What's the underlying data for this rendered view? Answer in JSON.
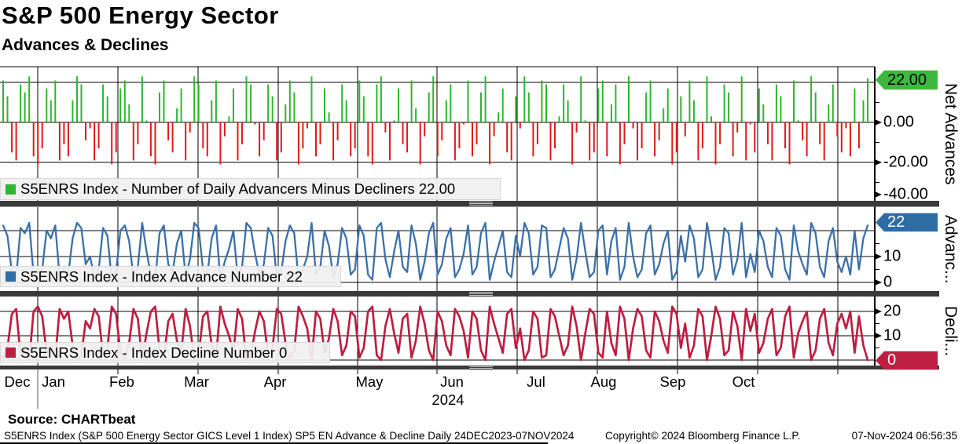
{
  "title": "S&P 500 Energy Sector",
  "subtitle": "Advances & Declines",
  "colors": {
    "advance_bar": "#2fb52f",
    "decline_bar": "#e01a1a",
    "advance_line": "#3a70a8",
    "decline_line": "#bd1e41",
    "tag_net_bg": "#3cb83c",
    "tag_adv_bg": "#2e6da4",
    "tag_dec_bg": "#bd1e41",
    "gridline": "#000000",
    "separator": "#3a3a3a",
    "legend_bg": "#f0f0f0"
  },
  "panels": [
    {
      "axis_title": "Net Advances",
      "tag": "22.00",
      "ticks": [
        "0.00",
        "-20.00",
        "-40.00"
      ],
      "legend": {
        "label": "S5ENRS Index - Number of Daily Advancers Minus Decliners 22.00"
      }
    },
    {
      "axis_title": "Advanc...",
      "tag": "22",
      "ticks": [
        "10",
        "0"
      ],
      "legend": {
        "label": "S5ENRS Index - Index Advance Number 22"
      }
    },
    {
      "axis_title": "Decli...",
      "tag": "0",
      "ticks": [
        "20",
        "10"
      ],
      "legend": {
        "label": "S5ENRS Index - Index Decline Number 0"
      }
    }
  ],
  "x_axis": {
    "months": [
      "Dec",
      "Jan",
      "Feb",
      "Mar",
      "Apr",
      "May",
      "Jun",
      "Jul",
      "Aug",
      "Sep",
      "Oct"
    ],
    "year": "2024"
  },
  "footer": {
    "source": "Source: CHARTbeat",
    "info": "S5ENRS Index (S&P 500 Energy Sector GICS Level 1 Index) SP5 EN Advance & Decline  Daily 24DEC2023-07NOV2024",
    "copyright": "Copyright© 2024 Bloomberg Finance L.P.",
    "timestamp": "07-Nov-2024 06:56:35"
  },
  "chart_data": [
    {
      "type": "bar",
      "title": "S5ENRS Index - Number of Daily Advancers Minus Decliners",
      "x_range": "24DEC2023-07NOV2024",
      "frequency": "Daily",
      "ylabel": "Net Advances",
      "ylim": [
        -45,
        28
      ],
      "yticks": [
        22,
        0,
        -20,
        -40
      ],
      "last_value": 22.0,
      "values": [
        21,
        13,
        -15,
        -19,
        19,
        15,
        23,
        -17,
        -21,
        -13,
        17,
        11,
        21,
        -19,
        -11,
        -17,
        11,
        23,
        19,
        -9,
        -3,
        -19,
        -13,
        19,
        13,
        -21,
        -15,
        17,
        21,
        9,
        -19,
        -11,
        23,
        1,
        -17,
        -21,
        15,
        21,
        -9,
        -15,
        7,
        17,
        -19,
        -5,
        23,
        19,
        -13,
        -17,
        11,
        21,
        -21,
        -7,
        3,
        17,
        -19,
        -11,
        23,
        19,
        -1,
        -17,
        -9,
        19,
        13,
        -19,
        -15,
        9,
        21,
        15,
        -21,
        -13,
        -3,
        23,
        -17,
        -11,
        17,
        5,
        -19,
        -9,
        19,
        11,
        -17,
        -13,
        21,
        13,
        -17,
        -21,
        19,
        23,
        -5,
        -19,
        1,
        17,
        -11,
        -15,
        21,
        7,
        -21,
        -7,
        15,
        23,
        -17,
        -9,
        11,
        19,
        -19,
        -13,
        -1,
        21,
        -17,
        -11,
        15,
        23,
        -21,
        -7,
        5,
        17,
        -15,
        -19,
        13,
        -3,
        23,
        15,
        -17,
        -11,
        21,
        19,
        -19,
        -13,
        3,
        19,
        11,
        -21,
        -5,
        23,
        1,
        -19,
        -15,
        17,
        21,
        -17,
        9,
        19,
        -21,
        -11,
        23,
        -3,
        -19,
        -13,
        15,
        21,
        -17,
        -9,
        7,
        17,
        -21,
        -15,
        13,
        -7,
        21,
        11,
        -19,
        -13,
        23,
        3,
        -21,
        -11,
        19,
        15,
        -17,
        -5,
        23,
        -19,
        -1,
        -15,
        17,
        9,
        -11,
        -19,
        19,
        13,
        -13,
        -21,
        21,
        1,
        -9,
        -17,
        23,
        15,
        -11,
        -19,
        9,
        19,
        -7,
        -15,
        -3,
        -17,
        17,
        -13,
        11,
        22
      ]
    },
    {
      "type": "line",
      "title": "S5ENRS Index - Index Advance Number",
      "ylabel": "Advance Number",
      "ylim": [
        0,
        28
      ],
      "yticks": [
        22,
        10,
        0
      ],
      "last_value": 22,
      "values": [
        22,
        18,
        4,
        2,
        21,
        19,
        23,
        3,
        1,
        5,
        20,
        17,
        22,
        2,
        6,
        3,
        17,
        23,
        21,
        7,
        10,
        2,
        5,
        21,
        18,
        1,
        4,
        20,
        22,
        16,
        2,
        6,
        23,
        12,
        3,
        1,
        19,
        22,
        7,
        4,
        15,
        20,
        2,
        9,
        23,
        21,
        5,
        3,
        17,
        22,
        1,
        8,
        13,
        20,
        2,
        6,
        23,
        21,
        11,
        3,
        7,
        21,
        18,
        2,
        4,
        16,
        22,
        19,
        1,
        5,
        10,
        23,
        3,
        6,
        20,
        14,
        2,
        7,
        21,
        17,
        3,
        5,
        22,
        18,
        3,
        1,
        21,
        23,
        9,
        2,
        12,
        20,
        6,
        4,
        22,
        15,
        1,
        8,
        19,
        23,
        3,
        7,
        17,
        21,
        2,
        5,
        11,
        22,
        3,
        6,
        19,
        23,
        1,
        8,
        14,
        20,
        4,
        2,
        18,
        10,
        23,
        19,
        3,
        6,
        22,
        21,
        2,
        5,
        13,
        21,
        17,
        1,
        9,
        23,
        12,
        2,
        4,
        20,
        22,
        3,
        16,
        21,
        1,
        6,
        23,
        10,
        2,
        5,
        19,
        22,
        3,
        7,
        15,
        20,
        1,
        4,
        18,
        8,
        22,
        17,
        2,
        5,
        23,
        13,
        1,
        6,
        21,
        19,
        3,
        9,
        23,
        2,
        11,
        4,
        20,
        16,
        6,
        2,
        21,
        18,
        5,
        1,
        22,
        12,
        7,
        3,
        23,
        19,
        6,
        2,
        16,
        21,
        8,
        4,
        10,
        3,
        20,
        5,
        17,
        22
      ]
    },
    {
      "type": "line",
      "title": "S5ENRS Index - Index Decline Number",
      "ylabel": "Decline Number",
      "ylim": [
        0,
        28
      ],
      "yticks": [
        20,
        10,
        0
      ],
      "last_value": 0,
      "values": [
        1,
        5,
        19,
        21,
        2,
        4,
        0,
        20,
        22,
        18,
        3,
        6,
        1,
        21,
        17,
        20,
        6,
        0,
        2,
        16,
        13,
        21,
        18,
        2,
        5,
        22,
        19,
        3,
        1,
        7,
        21,
        17,
        0,
        11,
        20,
        22,
        4,
        1,
        16,
        19,
        8,
        3,
        21,
        14,
        0,
        2,
        18,
        20,
        6,
        1,
        22,
        15,
        10,
        3,
        21,
        17,
        0,
        2,
        12,
        20,
        16,
        2,
        5,
        21,
        19,
        7,
        1,
        4,
        22,
        18,
        13,
        0,
        20,
        17,
        3,
        9,
        21,
        16,
        2,
        6,
        20,
        18,
        1,
        5,
        20,
        22,
        2,
        0,
        14,
        21,
        11,
        3,
        17,
        19,
        1,
        8,
        22,
        15,
        4,
        0,
        20,
        16,
        6,
        2,
        21,
        18,
        12,
        1,
        20,
        17,
        4,
        0,
        22,
        15,
        9,
        3,
        19,
        21,
        5,
        13,
        0,
        4,
        20,
        17,
        1,
        2,
        21,
        18,
        10,
        2,
        6,
        22,
        14,
        0,
        11,
        21,
        19,
        3,
        1,
        20,
        7,
        2,
        22,
        17,
        0,
        13,
        21,
        18,
        4,
        1,
        20,
        16,
        8,
        3,
        22,
        19,
        5,
        15,
        1,
        6,
        21,
        18,
        0,
        10,
        22,
        17,
        2,
        4,
        20,
        14,
        0,
        21,
        12,
        19,
        3,
        7,
        17,
        21,
        2,
        5,
        18,
        22,
        1,
        11,
        16,
        20,
        0,
        4,
        17,
        21,
        7,
        2,
        15,
        19,
        13,
        20,
        3,
        18,
        6,
        0
      ]
    }
  ]
}
